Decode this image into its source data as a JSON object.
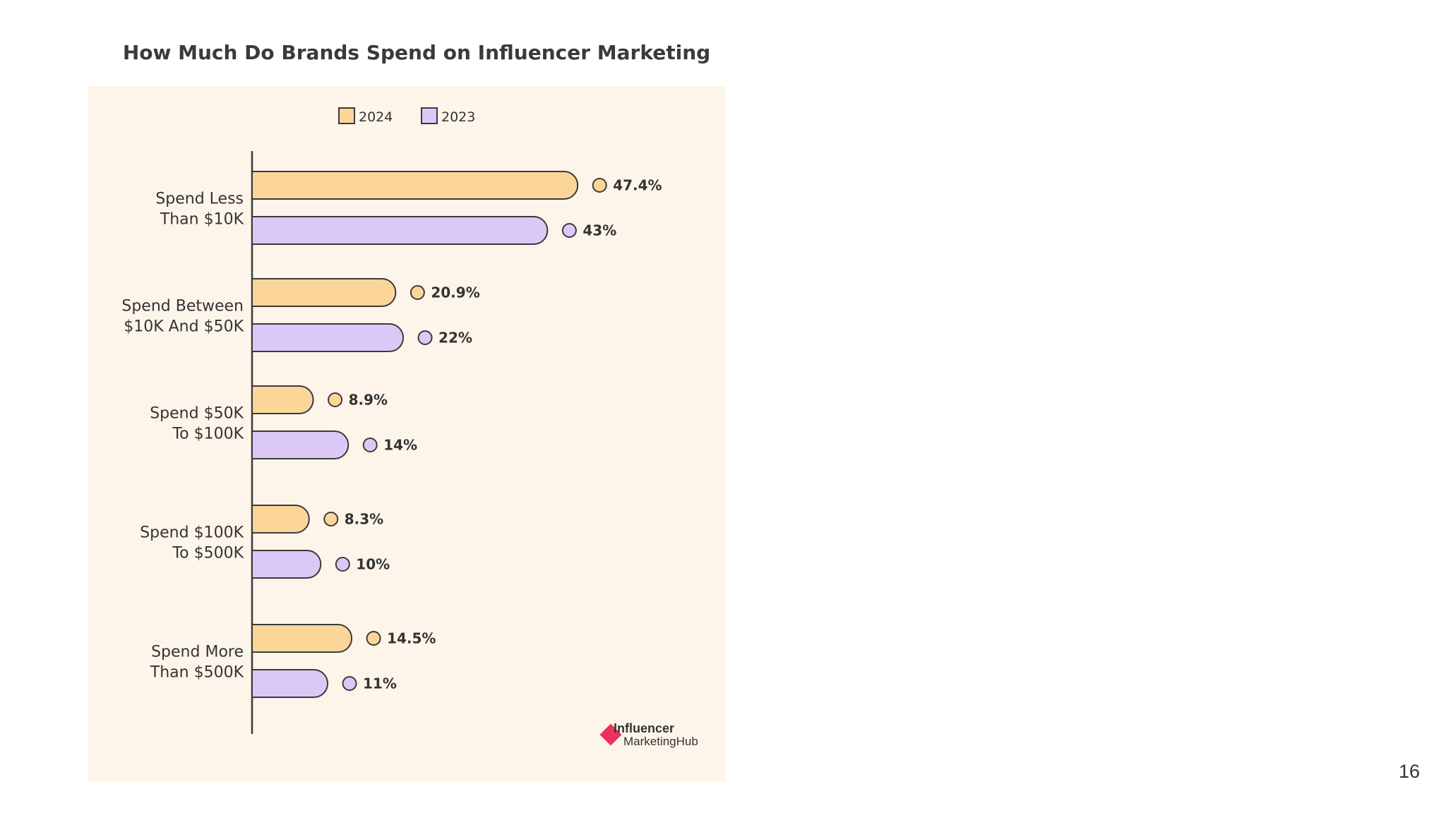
{
  "slide": {
    "page_number": "16"
  },
  "colors": {
    "series_2024": "#fcd699",
    "series_2023": "#dcc8f7",
    "outline": "#3a3a3a",
    "panel": "#fdf5e9",
    "brand_accent": "#e8335c"
  },
  "logo": {
    "line1": "Influencer",
    "line2": "MarketingHub"
  },
  "chart_data": {
    "type": "bar",
    "orientation": "horizontal",
    "title": "How Much Do Brands Spend on Influencer Marketing",
    "categories": [
      "Spend Less Than $10K",
      "Spend Between $10K And $50K",
      "Spend $50K To $100K",
      "Spend $100K To $500K",
      "Spend More Than $500K"
    ],
    "category_lines": [
      [
        "Spend Less",
        "Than $10K"
      ],
      [
        "Spend Between",
        "$10K And $50K"
      ],
      [
        "Spend $50K",
        "To $100K"
      ],
      [
        "Spend $100K",
        "To $500K"
      ],
      [
        "Spend More",
        "Than $500K"
      ]
    ],
    "series": [
      {
        "name": "2024",
        "values": [
          47.4,
          20.9,
          8.9,
          8.3,
          14.5
        ],
        "labels": [
          "47.4%",
          "20.9%",
          "8.9%",
          "8.3%",
          "14.5%"
        ]
      },
      {
        "name": "2023",
        "values": [
          43,
          22,
          14,
          10,
          11
        ],
        "labels": [
          "43%",
          "22%",
          "14%",
          "10%",
          "11%"
        ]
      }
    ],
    "xlim": [
      0,
      50
    ],
    "grid": false,
    "legend": "top-center"
  }
}
